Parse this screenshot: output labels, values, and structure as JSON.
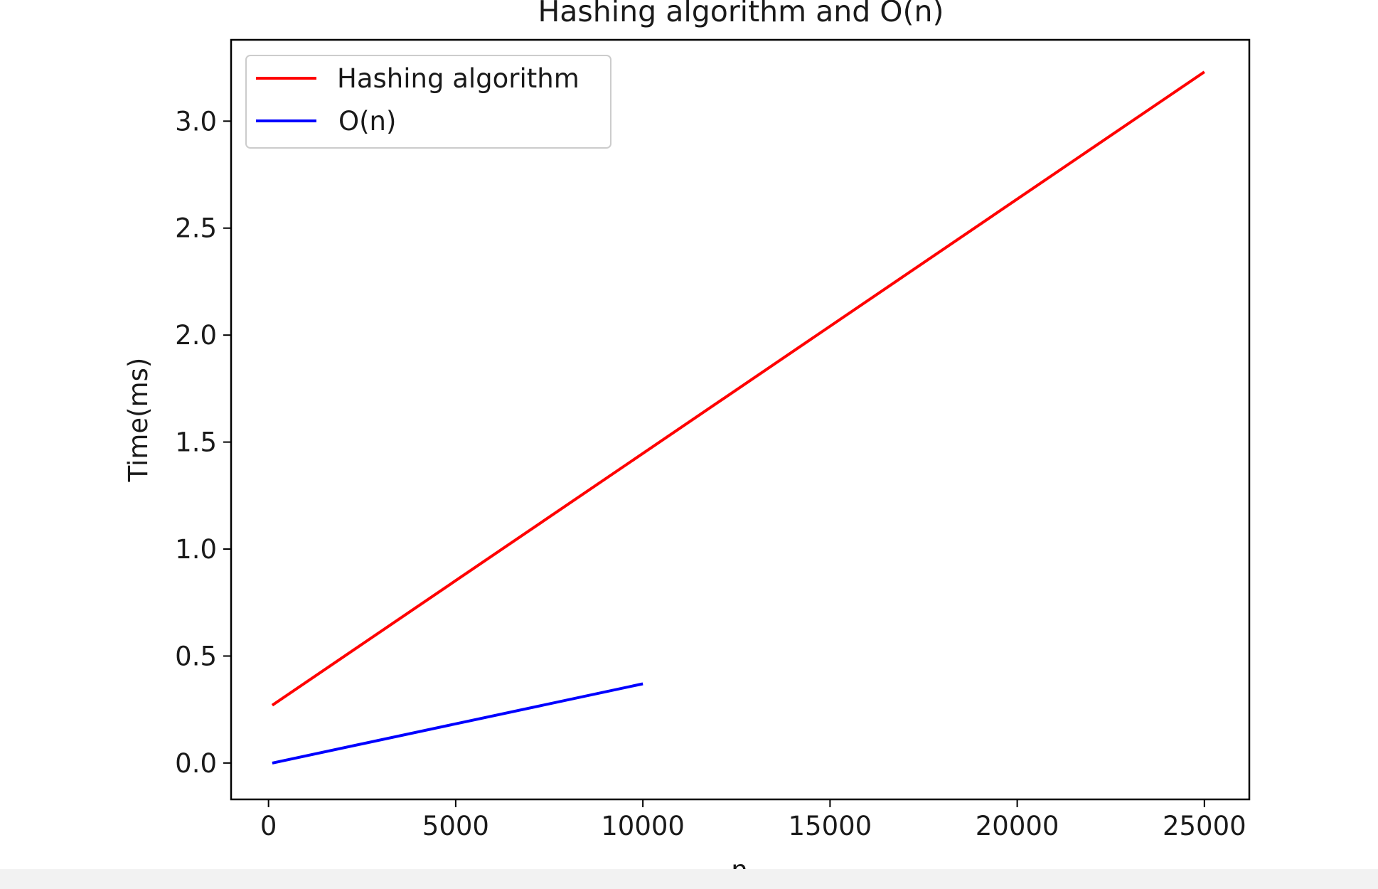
{
  "chart_data": {
    "type": "line",
    "title": "Hashing algorithm and O(n)",
    "xlabel": "n",
    "ylabel": "Time(ms)",
    "xlim": [
      -1000,
      26200
    ],
    "ylim": [
      -0.17,
      3.38
    ],
    "xticks": [
      0,
      5000,
      10000,
      15000,
      20000,
      25000
    ],
    "xtick_labels": [
      "0",
      "5000",
      "10000",
      "15000",
      "20000",
      "25000"
    ],
    "yticks": [
      0.0,
      0.5,
      1.0,
      1.5,
      2.0,
      2.5,
      3.0
    ],
    "ytick_labels": [
      "0.0",
      "0.5",
      "1.0",
      "1.5",
      "2.0",
      "2.5",
      "3.0"
    ],
    "grid": false,
    "legend_position": "top-left",
    "series": [
      {
        "name": "Hashing algorithm",
        "color": "#ff0000",
        "x": [
          100,
          25000
        ],
        "y": [
          0.27,
          3.23
        ]
      },
      {
        "name": "O(n)",
        "color": "#0000ff",
        "x": [
          100,
          10000
        ],
        "y": [
          0.0,
          0.37
        ]
      }
    ]
  }
}
